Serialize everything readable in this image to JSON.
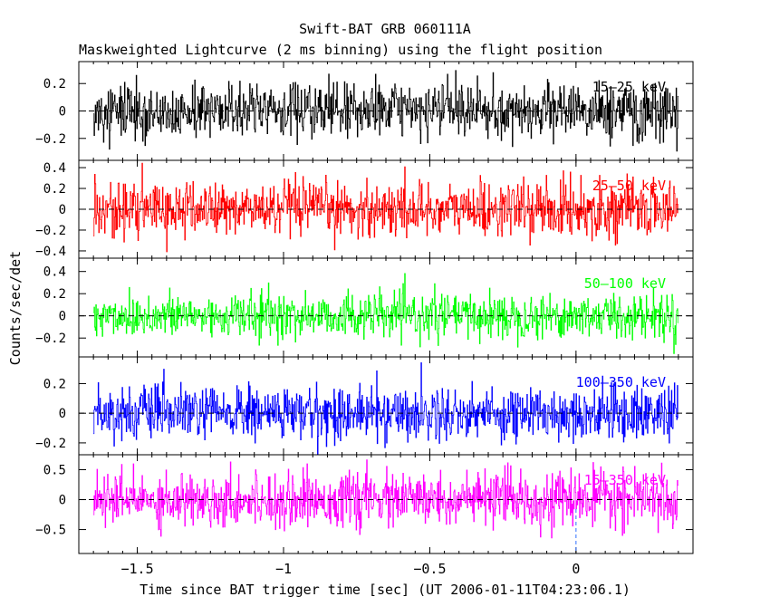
{
  "title": "Swift-BAT GRB 060111A",
  "subtitle": "Maskweighted Lightcurve (2 ms binning) using the flight position",
  "chart_data": {
    "type": "line",
    "title": "Swift-BAT GRB 060111A",
    "subtitle": "Maskweighted Lightcurve (2 ms binning) using the flight position",
    "xlabel": "Time since BAT trigger time [sec] (UT 2006-01-11T04:23:06.1)",
    "ylabel": "Counts/sec/det",
    "xlim": [
      -1.7,
      0.4
    ],
    "x_ticks": [
      {
        "value": -1.5,
        "label": "−1.5"
      },
      {
        "value": -1,
        "label": "−1"
      },
      {
        "value": -0.5,
        "label": "−0.5"
      },
      {
        "value": 0,
        "label": "0"
      }
    ],
    "trigger_marker_x": 0,
    "data_x_range": [
      -1.65,
      0.35
    ],
    "panels": [
      {
        "band_label": "15–25 keV",
        "color": "#000000",
        "ylim": [
          -0.36,
          0.36
        ],
        "y_ticks": [
          {
            "value": 0.2,
            "label": "0.2"
          },
          {
            "value": 0,
            "label": "0"
          },
          {
            "value": -0.2,
            "label": "−0.2"
          }
        ],
        "noise_sigma": 0.1,
        "baseline": 0.0
      },
      {
        "band_label": "25–50 keV",
        "color": "#ff0000",
        "ylim": [
          -0.47,
          0.47
        ],
        "y_ticks": [
          {
            "value": 0.4,
            "label": "0.4"
          },
          {
            "value": 0.2,
            "label": "0.2"
          },
          {
            "value": 0,
            "label": "0"
          },
          {
            "value": -0.2,
            "label": "−0.2"
          },
          {
            "value": -0.4,
            "label": "−0.4"
          }
        ],
        "noise_sigma": 0.13,
        "baseline": 0.0
      },
      {
        "band_label": "50–100 keV",
        "color": "#00ff00",
        "ylim": [
          -0.37,
          0.52
        ],
        "y_ticks": [
          {
            "value": 0.4,
            "label": "0.4"
          },
          {
            "value": 0.2,
            "label": "0.2"
          },
          {
            "value": 0,
            "label": "0"
          },
          {
            "value": -0.2,
            "label": "−0.2"
          }
        ],
        "noise_sigma": 0.1,
        "baseline": 0.0
      },
      {
        "band_label": "100–350 keV",
        "color": "#0000ff",
        "ylim": [
          -0.28,
          0.38
        ],
        "y_ticks": [
          {
            "value": 0.2,
            "label": "0.2"
          },
          {
            "value": 0,
            "label": "0"
          },
          {
            "value": -0.2,
            "label": "−0.2"
          }
        ],
        "noise_sigma": 0.09,
        "baseline": 0.0
      },
      {
        "band_label": "15–350 keV",
        "color": "#ff00ff",
        "ylim": [
          -0.9,
          0.75
        ],
        "y_ticks": [
          {
            "value": 0.5,
            "label": "0.5"
          },
          {
            "value": 0,
            "label": "0"
          },
          {
            "value": -0.5,
            "label": "−0.5"
          }
        ],
        "noise_sigma": 0.22,
        "baseline": 0.0
      }
    ]
  }
}
